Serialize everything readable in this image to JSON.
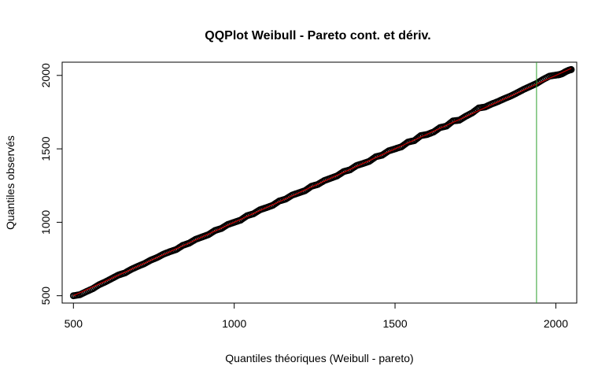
{
  "chart_data": {
    "type": "scatter",
    "title": "QQPlot Weibull - Pareto cont. et dériv.",
    "xlabel": "Quantiles théoriques (Weibull - pareto)",
    "ylabel": "Quantiles observés",
    "xlim": [
      465,
      2065
    ],
    "ylim": [
      450,
      2090
    ],
    "xticks": [
      500,
      1000,
      1500,
      2000
    ],
    "yticks": [
      500,
      1000,
      1500,
      2000
    ],
    "grid": false,
    "legend": "none",
    "series": [
      {
        "kind": "points",
        "color": "#000000",
        "points": [
          [
            500,
            500
          ],
          [
            520,
            507
          ],
          [
            540,
            528
          ],
          [
            560,
            548
          ],
          [
            580,
            575
          ],
          [
            600,
            595
          ],
          [
            620,
            618
          ],
          [
            640,
            641
          ],
          [
            660,
            655
          ],
          [
            680,
            680
          ],
          [
            700,
            700
          ],
          [
            720,
            718
          ],
          [
            740,
            742
          ],
          [
            760,
            760
          ],
          [
            780,
            783
          ],
          [
            800,
            800
          ],
          [
            820,
            815
          ],
          [
            840,
            843
          ],
          [
            860,
            858
          ],
          [
            880,
            884
          ],
          [
            900,
            900
          ],
          [
            920,
            916
          ],
          [
            940,
            944
          ],
          [
            960,
            958
          ],
          [
            980,
            985
          ],
          [
            1000,
            1000
          ],
          [
            1020,
            1015
          ],
          [
            1040,
            1045
          ],
          [
            1060,
            1058
          ],
          [
            1080,
            1085
          ],
          [
            1100,
            1100
          ],
          [
            1120,
            1116
          ],
          [
            1140,
            1145
          ],
          [
            1160,
            1158
          ],
          [
            1180,
            1185
          ],
          [
            1200,
            1200
          ],
          [
            1220,
            1215
          ],
          [
            1240,
            1245
          ],
          [
            1260,
            1258
          ],
          [
            1280,
            1284
          ],
          [
            1300,
            1300
          ],
          [
            1320,
            1316
          ],
          [
            1340,
            1345
          ],
          [
            1360,
            1357
          ],
          [
            1380,
            1386
          ],
          [
            1400,
            1400
          ],
          [
            1420,
            1415
          ],
          [
            1440,
            1446
          ],
          [
            1460,
            1457
          ],
          [
            1480,
            1486
          ],
          [
            1500,
            1500
          ],
          [
            1520,
            1514
          ],
          [
            1540,
            1546
          ],
          [
            1560,
            1556
          ],
          [
            1580,
            1590
          ],
          [
            1600,
            1598
          ],
          [
            1620,
            1615
          ],
          [
            1640,
            1645
          ],
          [
            1660,
            1655
          ],
          [
            1680,
            1690
          ],
          [
            1700,
            1695
          ],
          [
            1720,
            1722
          ],
          [
            1740,
            1745
          ],
          [
            1760,
            1778
          ],
          [
            1780,
            1785
          ],
          [
            1800,
            1805
          ],
          [
            1820,
            1822
          ],
          [
            1840,
            1842
          ],
          [
            1860,
            1860
          ],
          [
            1880,
            1882
          ],
          [
            1900,
            1905
          ],
          [
            1920,
            1925
          ],
          [
            1940,
            1945
          ],
          [
            1960,
            1972
          ],
          [
            1980,
            1995
          ],
          [
            2000,
            2002
          ],
          [
            2010,
            2005
          ],
          [
            2020,
            2012
          ],
          [
            2030,
            2025
          ],
          [
            2040,
            2035
          ],
          [
            2048,
            2040
          ]
        ]
      },
      {
        "kind": "reference-line",
        "color": "#c00000",
        "x": [
          500,
          2048
        ],
        "y": [
          500,
          2048
        ]
      }
    ],
    "annotations": [
      {
        "kind": "vertical-line",
        "x": 1940,
        "color": "#2ca02c"
      }
    ]
  }
}
